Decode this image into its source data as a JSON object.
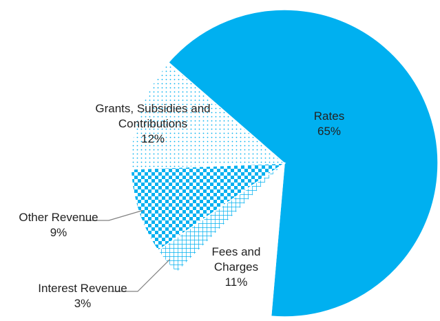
{
  "chart_data": {
    "type": "pie",
    "categories": [
      "Rates",
      "Fees and Charges",
      "Interest Revenue",
      "Other Revenue",
      "Grants, Subsidies and Contributions"
    ],
    "values": [
      65,
      11,
      3,
      9,
      12
    ],
    "value_labels": [
      "65%",
      "11%",
      "3%",
      "9%",
      "12%"
    ],
    "colors": [
      "#00b0f0",
      "#ffffff",
      "#00b0f0",
      "#00b0f0",
      "#00b0f0"
    ],
    "patterns": [
      "solid",
      "solid",
      "grid",
      "checker",
      "dots"
    ]
  }
}
